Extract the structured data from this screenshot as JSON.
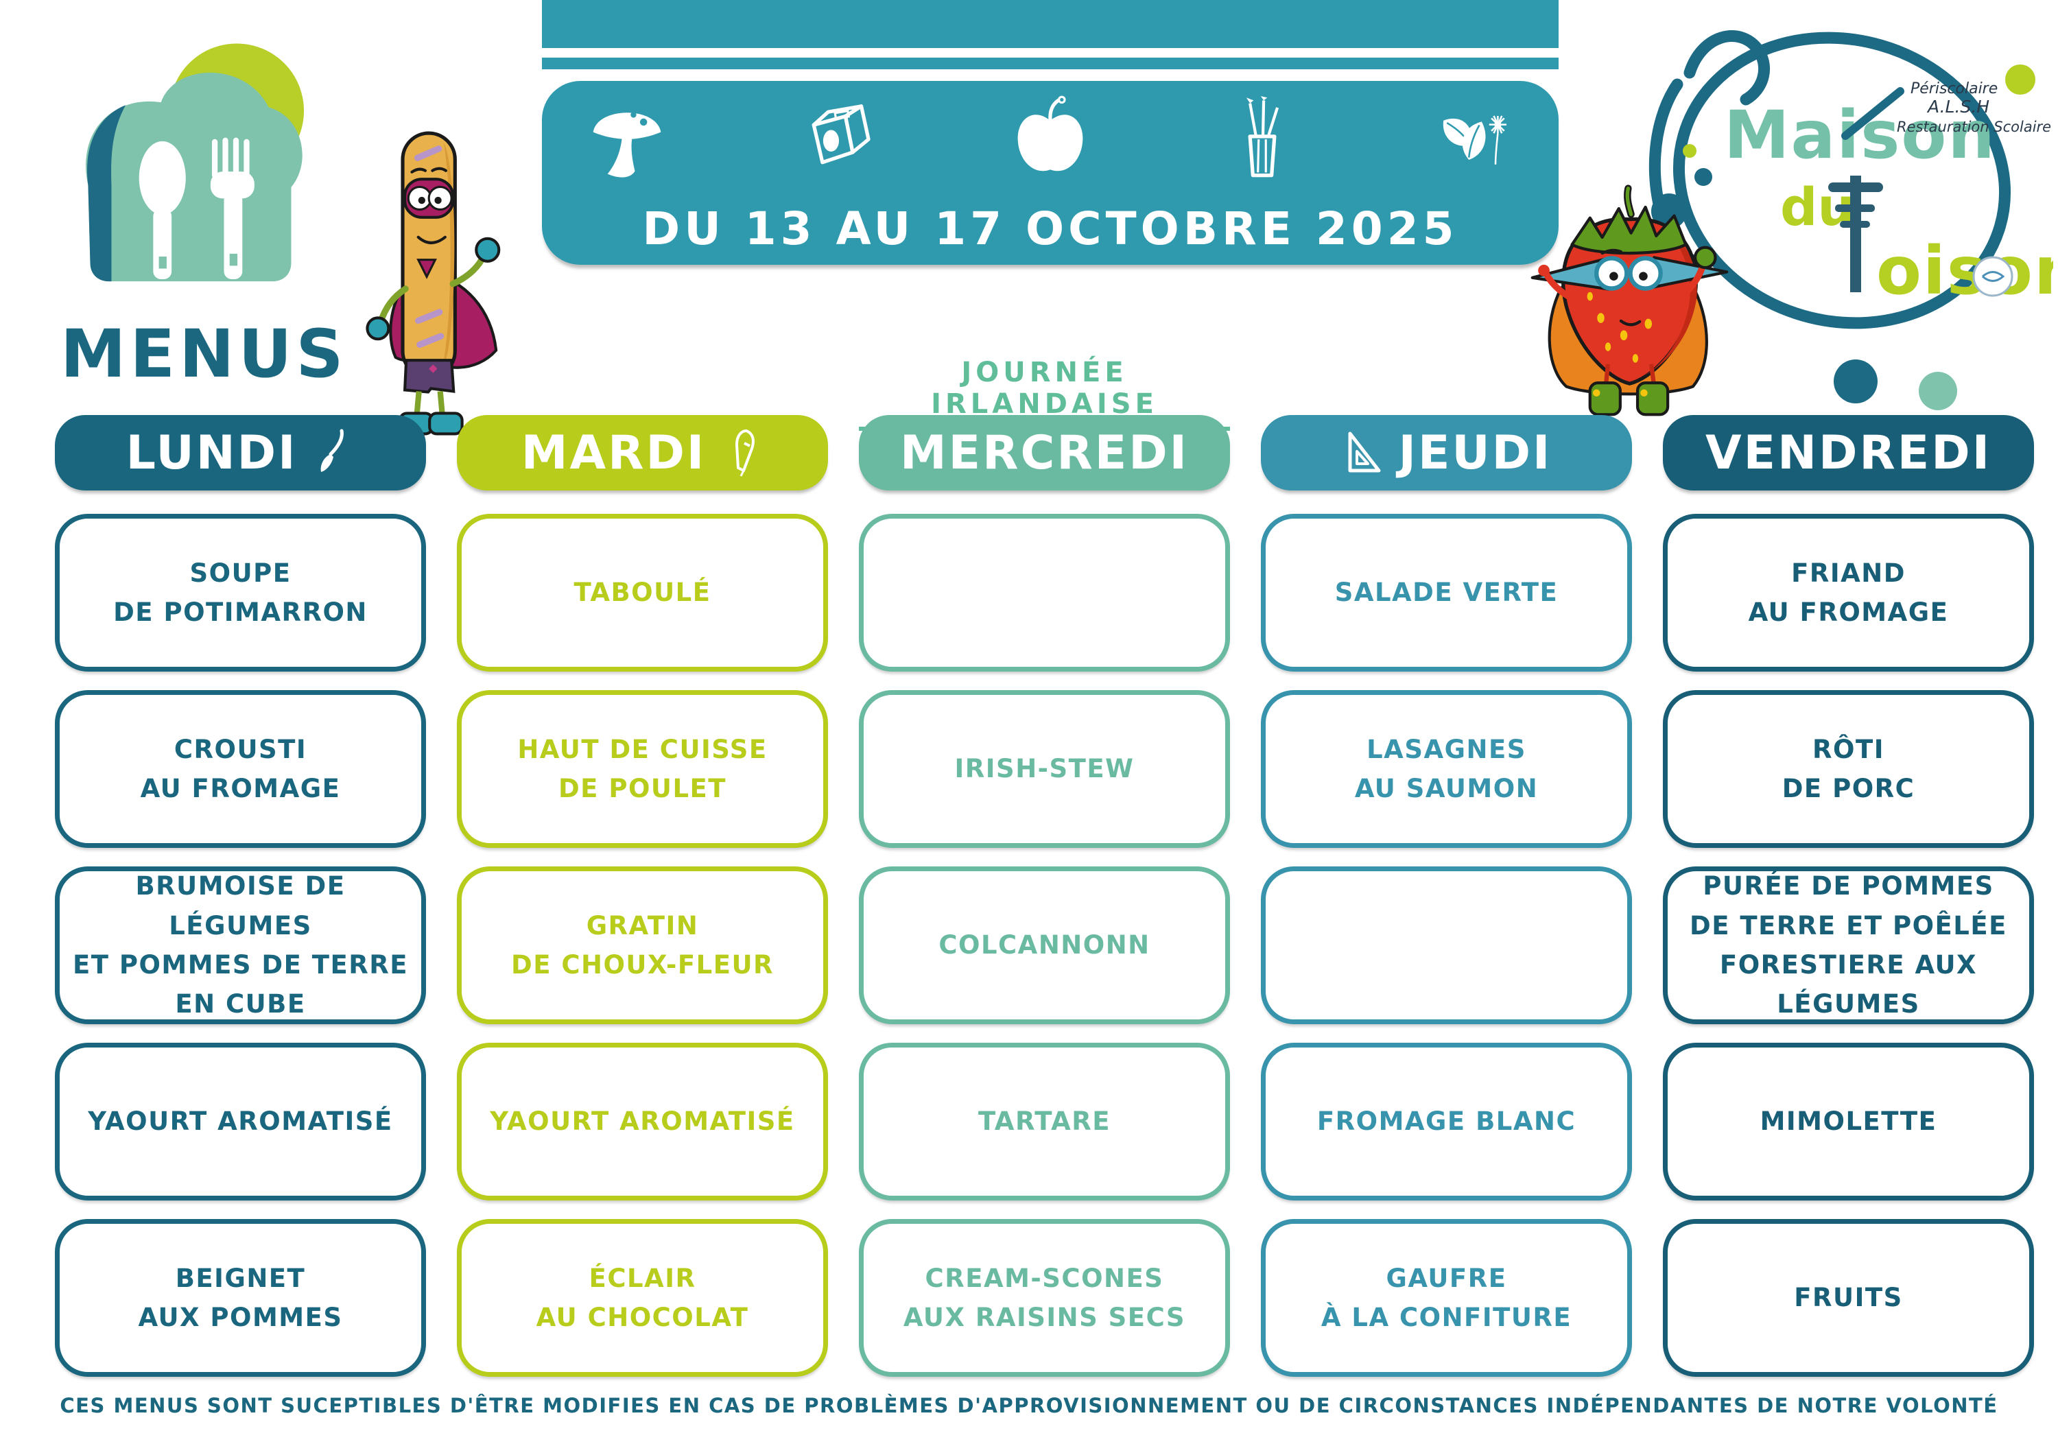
{
  "logo": {
    "menus_label": "MENUS"
  },
  "banner": {
    "date_label": "DU 13 AU 17 OCTOBRE 2025",
    "color": "#2F9AAE",
    "icons": [
      "mushroom-icon",
      "pencil-sharpener-icon",
      "apple-icon",
      "pencil-cup-icon",
      "leaves-flower-icon"
    ]
  },
  "brand": {
    "word1": "Maison",
    "word2": "du",
    "word3_initial": "T",
    "word3_rest": "oison",
    "subtext1": "Périscolaire",
    "subtext2": "A.L.S.H",
    "subtext3": "Restauration Scolaire",
    "colors": {
      "word1": "#74C0A8",
      "word2": "#B6CF23",
      "word3": "#B6CF23",
      "ring": "#1D6A84"
    }
  },
  "special_day": {
    "label": "JOURNÉE IRLANDAISE",
    "color": "#5FBD9A"
  },
  "mascots": {
    "left": "baguette-superhero",
    "right": "strawberry-superhero"
  },
  "columns": [
    {
      "id": "lundi",
      "label": "LUNDI",
      "icon_after": "paintbrush-icon",
      "color": "#1A667F",
      "cell_color": "#1A667F",
      "items": [
        "SOUPE\nDE POTIMARRON",
        "CROUSTI\nAU FROMAGE",
        "BRUMOISE DE LÉGUMES\nET POMMES DE TERRE\nEN CUBE",
        "YAOURT AROMATISÉ",
        "BEIGNET\nAUX POMMES"
      ]
    },
    {
      "id": "mardi",
      "label": "MARDI",
      "icon_after": "pen-icon",
      "color": "#B8CC1B",
      "cell_color": "#B8CC1B",
      "items": [
        "TABOULÉ",
        "HAUT DE CUISSE\nDE POULET",
        "GRATIN\nDE CHOUX-FLEUR",
        "YAOURT AROMATISÉ",
        "ÉCLAIR\nAU CHOCOLAT"
      ]
    },
    {
      "id": "mercredi",
      "label": "MERCREDI",
      "color": "#6ABAA2",
      "cell_color": "#6ABAA2",
      "items": [
        "",
        "IRISH-STEW",
        "COLCANNONN",
        "TARTARE",
        "CREAM-SCONES\nAUX RAISINS SECS"
      ]
    },
    {
      "id": "jeudi",
      "label": "JEUDI",
      "icon_before": "set-square-icon",
      "color": "#3894AC",
      "cell_color": "#3894AC",
      "items": [
        "SALADE VERTE",
        "LASAGNES\nAU SAUMON",
        "",
        "FROMAGE BLANC",
        "GAUFRE\nÀ LA CONFITURE"
      ]
    },
    {
      "id": "vendredi",
      "label": "VENDREDI",
      "color": "#175E76",
      "cell_color": "#175E76",
      "items": [
        "FRIAND\nAU FROMAGE",
        "RÔTI\nDE PORC",
        "PURÉE DE POMMES\nDE TERRE ET POÊLÉE\nFORESTIERE AUX LÉGUMES",
        "MIMOLETTE",
        "FRUITS"
      ]
    }
  ],
  "footer": {
    "disclaimer": "CES MENUS SONT SUCEPTIBLES D'ÊTRE MODIFIES EN CAS DE PROBLÈMES D'APPROVISIONNEMENT OU DE CIRCONSTANCES INDÉPENDANTES DE NOTRE VOLONTÉ"
  }
}
